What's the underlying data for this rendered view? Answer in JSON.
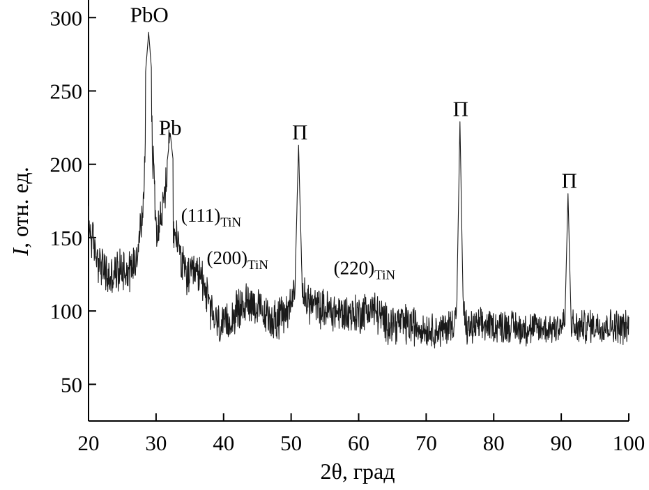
{
  "chart_data": {
    "type": "line",
    "title": "",
    "xlabel": "2θ, град",
    "ylabel_italic": "I",
    "ylabel_rest": ", отн. ед.",
    "xlim": [
      20,
      100
    ],
    "ylim": [
      25,
      312
    ],
    "x_ticks": [
      20,
      30,
      40,
      50,
      60,
      70,
      80,
      90,
      100
    ],
    "y_ticks": [
      50,
      100,
      150,
      200,
      250,
      300
    ],
    "grid": false,
    "legend": "none",
    "baseline_points": [
      [
        20,
        160
      ],
      [
        21,
        140
      ],
      [
        22,
        130
      ],
      [
        23,
        122
      ],
      [
        24,
        125
      ],
      [
        25,
        130
      ],
      [
        26,
        128
      ],
      [
        27,
        135
      ],
      [
        28,
        165
      ],
      [
        28.5,
        215
      ],
      [
        29,
        275
      ],
      [
        29.5,
        210
      ],
      [
        30,
        160
      ],
      [
        30.6,
        160
      ],
      [
        31.2,
        175
      ],
      [
        32,
        212
      ],
      [
        32.6,
        150
      ],
      [
        33.2,
        150
      ],
      [
        34,
        128
      ],
      [
        35,
        122
      ],
      [
        36,
        125
      ],
      [
        37,
        122
      ],
      [
        38,
        100
      ],
      [
        39,
        92
      ],
      [
        40,
        88
      ],
      [
        42,
        100
      ],
      [
        44,
        108
      ],
      [
        46,
        96
      ],
      [
        48,
        94
      ],
      [
        50,
        104
      ],
      [
        51,
        135
      ],
      [
        52,
        108
      ],
      [
        54,
        102
      ],
      [
        56,
        100
      ],
      [
        58,
        98
      ],
      [
        60,
        98
      ],
      [
        62,
        102
      ],
      [
        64,
        92
      ],
      [
        66,
        92
      ],
      [
        68,
        90
      ],
      [
        70,
        88
      ],
      [
        72,
        86
      ],
      [
        74,
        92
      ],
      [
        75,
        110
      ],
      [
        76,
        88
      ],
      [
        78,
        90
      ],
      [
        80,
        90
      ],
      [
        82,
        90
      ],
      [
        84,
        88
      ],
      [
        86,
        88
      ],
      [
        88,
        88
      ],
      [
        90,
        90
      ],
      [
        91,
        95
      ],
      [
        92,
        88
      ],
      [
        94,
        90
      ],
      [
        96,
        90
      ],
      [
        98,
        90
      ],
      [
        100,
        88
      ]
    ],
    "peaks": [
      {
        "x": 28.9,
        "y": 290
      },
      {
        "x": 32.1,
        "y": 221
      },
      {
        "x": 51.1,
        "y": 213
      },
      {
        "x": 75.0,
        "y": 229
      },
      {
        "x": 91.0,
        "y": 180
      }
    ],
    "annotations": [
      {
        "text": "PbO",
        "sub": "",
        "x": 29.0,
        "y": 297,
        "size": "big"
      },
      {
        "text": "Pb",
        "sub": "",
        "x": 30.4,
        "y": 220,
        "size": "big"
      },
      {
        "text": "(111)",
        "sub": "TiN",
        "x": 33.7,
        "y": 161,
        "size": "mid"
      },
      {
        "text": "(200)",
        "sub": "TiN",
        "x": 37.5,
        "y": 132,
        "size": "mid"
      },
      {
        "text": "(220)",
        "sub": "TiN",
        "x": 56.3,
        "y": 125,
        "size": "mid"
      },
      {
        "text": "П",
        "sub": "",
        "x": 51.3,
        "y": 217,
        "size": "big"
      },
      {
        "text": "П",
        "sub": "",
        "x": 75.1,
        "y": 233,
        "size": "big"
      },
      {
        "text": "П",
        "sub": "",
        "x": 91.2,
        "y": 184,
        "size": "big"
      }
    ]
  }
}
